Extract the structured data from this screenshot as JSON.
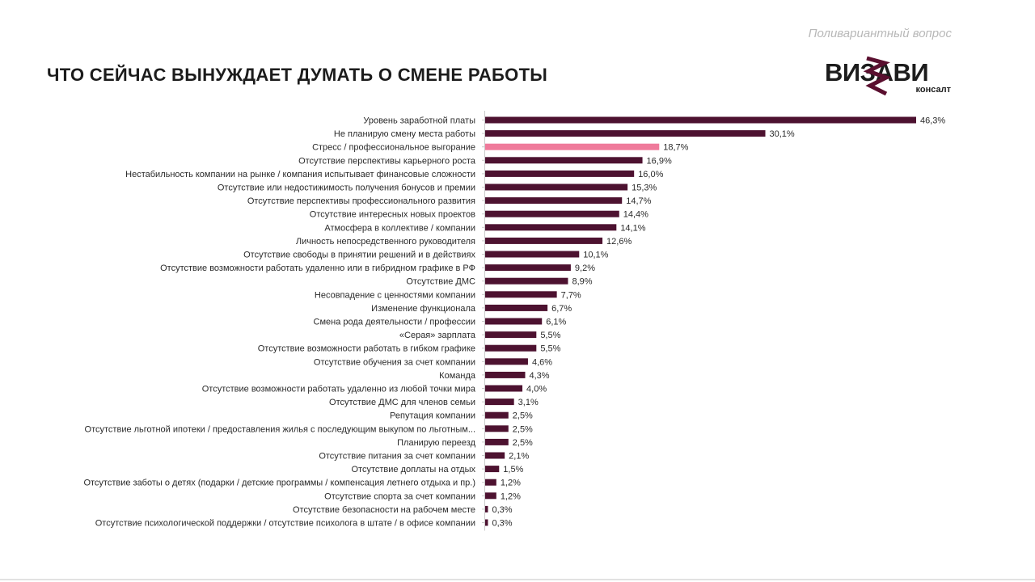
{
  "header": {
    "subtitle": "Поливариантный вопрос",
    "title": "ЧТО СЕЙЧАС ВЫНУЖДАЕТ ДУМАТЬ О СМЕНЕ РАБОТЫ"
  },
  "logo": {
    "word": "ВИЗАВИ",
    "sub": "консалт",
    "mark_color": "#5a0f2f"
  },
  "colors": {
    "bar": "#4d1230",
    "highlight": "#ef7a9b",
    "axis": "#c9c9c9"
  },
  "chart_data": {
    "type": "bar",
    "orientation": "horizontal",
    "title": "ЧТО СЕЙЧАС ВЫНУЖДАЕТ ДУМАТЬ О СМЕНЕ РАБОТЫ",
    "xlim": [
      0,
      46.3
    ],
    "highlight_index": 2,
    "categories": [
      "Уровень заработной платы",
      "Не планирую смену места работы",
      "Стресс / профессиональное выгорание",
      "Отсутствие перспективы карьерного роста",
      "Нестабильность компании на рынке / компания испытывает финансовые сложности",
      "Отсутствие или недостижимость получения бонусов и премии",
      "Отсутствие перспективы профессионального развития",
      "Отсутствие интересных новых проектов",
      "Атмосфера в коллективе / компании",
      "Личность непосредственного руководителя",
      "Отсутствие свободы в принятии решений и в действиях",
      "Отсутствие возможности работать удаленно или в гибридном графике в РФ",
      "Отсутствие ДМС",
      "Несовпадение с ценностями компании",
      "Изменение функционала",
      "Смена рода деятельности / профессии",
      "«Серая» зарплата",
      "Отсутствие возможности работать в гибком графике",
      "Отсутствие обучения за счет компании",
      "Команда",
      "Отсутствие возможности работать удаленно из любой точки мира",
      "Отсутствие ДМС для членов семьи",
      "Репутация компании",
      "Отсутствие льготной ипотеки / предоставления жилья с последующим выкупом по льготным...",
      "Планирую переезд",
      "Отсутствие питания за счет компании",
      "Отсутствие доплаты на отдых",
      "Отсутствие заботы о детях (подарки / детские программы / компенсация летнего отдыха и пр.)",
      "Отсутствие спорта за счет компании",
      "Отсутствие безопасности на рабочем месте",
      "Отсутствие психологической поддержки / отсутствие психолога в штате / в офисе компании"
    ],
    "values": [
      46.3,
      30.1,
      18.7,
      16.9,
      16.0,
      15.3,
      14.7,
      14.4,
      14.1,
      12.6,
      10.1,
      9.2,
      8.9,
      7.7,
      6.7,
      6.1,
      5.5,
      5.5,
      4.6,
      4.3,
      4.0,
      3.1,
      2.5,
      2.5,
      2.5,
      2.1,
      1.5,
      1.2,
      1.2,
      0.3,
      0.3
    ],
    "value_labels": [
      "46,3%",
      "30,1%",
      "18,7%",
      "16,9%",
      "16,0%",
      "15,3%",
      "14,7%",
      "14,4%",
      "14,1%",
      "12,6%",
      "10,1%",
      "9,2%",
      "8,9%",
      "7,7%",
      "6,7%",
      "6,1%",
      "5,5%",
      "5,5%",
      "4,6%",
      "4,3%",
      "4,0%",
      "3,1%",
      "2,5%",
      "2,5%",
      "2,5%",
      "2,1%",
      "1,5%",
      "1,2%",
      "1,2%",
      "0,3%",
      "0,3%"
    ]
  }
}
